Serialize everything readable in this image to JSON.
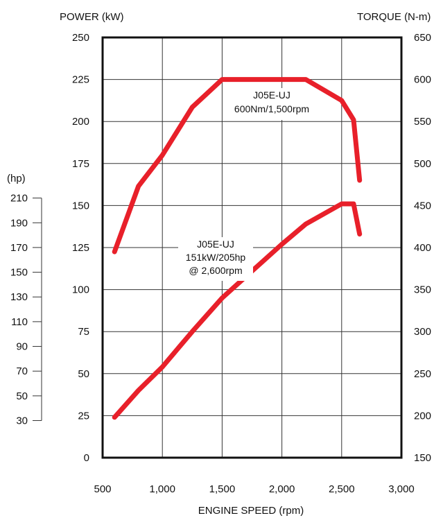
{
  "chart_data": {
    "type": "line",
    "xlabel": "ENGINE SPEED (rpm)",
    "xlim": [
      500,
      3000
    ],
    "x_ticks": [
      {
        "value": 500,
        "label": "500"
      },
      {
        "value": 1000,
        "label": "1,000"
      },
      {
        "value": 1500,
        "label": "1,500"
      },
      {
        "value": 2000,
        "label": "2,000"
      },
      {
        "value": 2500,
        "label": "2,500"
      },
      {
        "value": 3000,
        "label": "3,000"
      }
    ],
    "y_left": {
      "label": "POWER (kW)",
      "lim": [
        0,
        250
      ],
      "ticks": [
        0,
        25,
        50,
        75,
        100,
        125,
        150,
        175,
        200,
        225,
        250
      ]
    },
    "y_right": {
      "label": "TORQUE (N-m)",
      "lim": [
        150,
        650
      ],
      "ticks": [
        150,
        200,
        250,
        300,
        350,
        400,
        450,
        500,
        550,
        600,
        650
      ]
    },
    "y_hp": {
      "label": "(hp)",
      "ticks": [
        {
          "hp": 30,
          "label": "30"
        },
        {
          "hp": 50,
          "label": "50"
        },
        {
          "hp": 70,
          "label": "70"
        },
        {
          "hp": 90,
          "label": "90"
        },
        {
          "hp": 110,
          "label": "110"
        },
        {
          "hp": 130,
          "label": "130"
        },
        {
          "hp": 150,
          "label": "150"
        },
        {
          "hp": 170,
          "label": "170"
        },
        {
          "hp": 190,
          "label": "190"
        },
        {
          "hp": 210,
          "label": "210"
        }
      ]
    },
    "grid": true,
    "line_color": "#e8202a",
    "series": [
      {
        "axis": "right",
        "x": [
          600,
          800,
          1000,
          1250,
          1500,
          1800,
          2000,
          2200,
          2500,
          2600,
          2650
        ],
        "y": [
          395,
          473,
          510,
          567,
          600,
          600,
          600,
          600,
          575,
          552,
          480
        ],
        "annotation": [
          "J05E-UJ",
          "600Nm/1,500rpm"
        ]
      },
      {
        "axis": "left",
        "x": [
          600,
          800,
          1000,
          1250,
          1500,
          1750,
          2000,
          2200,
          2500,
          2600,
          2650
        ],
        "y": [
          24,
          40,
          54,
          75,
          95,
          111,
          127,
          139,
          151,
          151,
          133
        ],
        "annotation": [
          "J05E-UJ",
          "151kW/205hp",
          "@ 2,600rpm"
        ]
      }
    ]
  }
}
